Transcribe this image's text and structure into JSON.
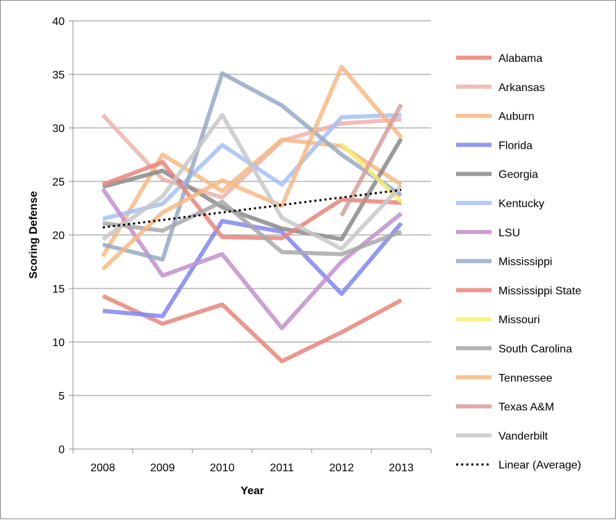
{
  "chart_data": {
    "type": "line",
    "title": "",
    "xlabel": "Year",
    "ylabel": "Scoring Defense",
    "categories": [
      "2008",
      "2009",
      "2010",
      "2011",
      "2012",
      "2013"
    ],
    "ylim": [
      0,
      40
    ],
    "yticks": [
      "0",
      "5",
      "10",
      "15",
      "20",
      "25",
      "30",
      "35",
      "40"
    ],
    "grid": true,
    "legend_position": "right",
    "series": [
      {
        "name": "Alabama",
        "color": "#e8857a",
        "values": [
          14.3,
          11.7,
          13.5,
          8.2,
          10.9,
          13.9
        ]
      },
      {
        "name": "Arkansas",
        "color": "#ecb3ad",
        "values": [
          31.2,
          25.2,
          23.5,
          28.8,
          30.4,
          30.8
        ]
      },
      {
        "name": "Auburn",
        "color": "#f7b983",
        "values": [
          18.0,
          27.5,
          24.1,
          28.9,
          28.3,
          24.7
        ]
      },
      {
        "name": "Florida",
        "color": "#7f86f2",
        "values": [
          12.9,
          12.4,
          21.3,
          20.3,
          14.5,
          21.1
        ]
      },
      {
        "name": "Georgia",
        "color": "#8a8a8a",
        "values": [
          24.5,
          26.0,
          22.6,
          20.6,
          19.6,
          29.0
        ]
      },
      {
        "name": "Kentucky",
        "color": "#a6c1f7",
        "values": [
          21.5,
          22.9,
          28.4,
          24.7,
          31.0,
          31.2
        ]
      },
      {
        "name": "LSU",
        "color": "#c290cc",
        "values": [
          24.3,
          16.2,
          18.2,
          11.3,
          17.5,
          22.0
        ]
      },
      {
        "name": "Mississippi",
        "color": "#96a9c4",
        "values": [
          19.1,
          17.7,
          35.1,
          32.1,
          27.5,
          23.7
        ]
      },
      {
        "name": "Mississippi State",
        "color": "#e8857a",
        "values": [
          24.7,
          26.8,
          19.8,
          19.7,
          23.3,
          23.0
        ]
      },
      {
        "name": "Missouri",
        "color": "#f7ef6e",
        "values": [
          null,
          null,
          null,
          null,
          28.5,
          23.1
        ]
      },
      {
        "name": "South Carolina",
        "color": "#a8a8a8",
        "values": [
          21.1,
          20.4,
          23.1,
          18.4,
          18.2,
          20.3
        ]
      },
      {
        "name": "Tennessee",
        "color": "#f7b983",
        "values": [
          16.8,
          22.1,
          25.1,
          22.7,
          35.7,
          29.1
        ]
      },
      {
        "name": "Texas A&M",
        "color": "#d4a09c",
        "values": [
          null,
          null,
          null,
          null,
          21.8,
          32.2
        ]
      },
      {
        "name": "Vanderbilt",
        "color": "#c8c8c8",
        "values": [
          19.6,
          23.6,
          31.2,
          21.6,
          18.7,
          24.6
        ]
      }
    ],
    "trendline": {
      "name": "Linear (Average)",
      "color": "#000000",
      "style": "dotted",
      "start": 20.7,
      "end": 24.2
    }
  }
}
